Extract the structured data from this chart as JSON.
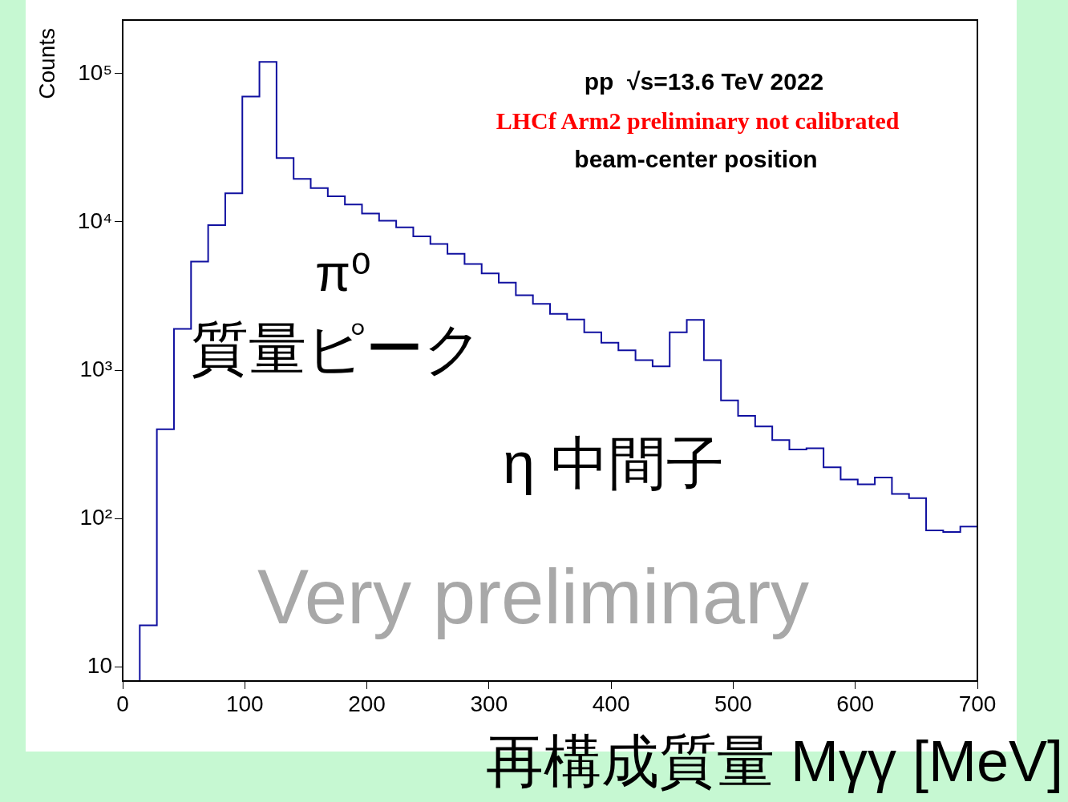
{
  "chart_data": {
    "type": "histogram",
    "xlabel": "再構成質量 Mγγ [MeV]",
    "ylabel": "Counts",
    "bins": [
      14,
      28,
      42,
      56,
      70,
      84,
      98,
      112,
      126,
      140,
      154,
      168,
      182,
      196,
      210,
      224,
      238,
      252,
      266,
      280,
      294,
      308,
      322,
      336,
      350,
      364,
      378,
      392,
      406,
      420,
      434,
      448,
      462,
      476,
      490,
      504,
      518,
      532,
      546,
      560,
      574,
      588,
      602,
      616,
      630,
      644,
      658,
      672,
      686,
      700
    ],
    "values": [
      19,
      400,
      1900,
      5400,
      9500,
      15600,
      70000,
      120000,
      27000,
      19500,
      16900,
      14900,
      13100,
      11400,
      10200,
      9200,
      8000,
      7100,
      6100,
      5200,
      4500,
      3900,
      3200,
      2800,
      2400,
      2200,
      1800,
      1530,
      1360,
      1170,
      1060,
      1800,
      2180,
      1170,
      625,
      492,
      417,
      338,
      292,
      297,
      221,
      183,
      170,
      189,
      146,
      137,
      83,
      81,
      88
    ],
    "color": "#1010a0",
    "log": "y",
    "grid": false,
    "legend": false,
    "xlim": [
      0,
      700
    ],
    "xticks": [
      0,
      100,
      200,
      300,
      400,
      500,
      600,
      700
    ],
    "ylim": [
      8,
      230000
    ],
    "yticks": [
      10,
      {
        "value": 100,
        "label": "10²"
      },
      {
        "value": 1000,
        "label": "10³"
      },
      {
        "value": 10000,
        "label": "10⁴"
      },
      {
        "value": 100000,
        "label": "10⁵"
      }
    ],
    "annotations": [
      "pp  √s=13.6 TeV 2022",
      "LHCf Arm2 preliminary not calibrated",
      "beam-center position",
      "π⁰",
      "質量ピーク",
      "η 中間子",
      "Very preliminary"
    ]
  }
}
